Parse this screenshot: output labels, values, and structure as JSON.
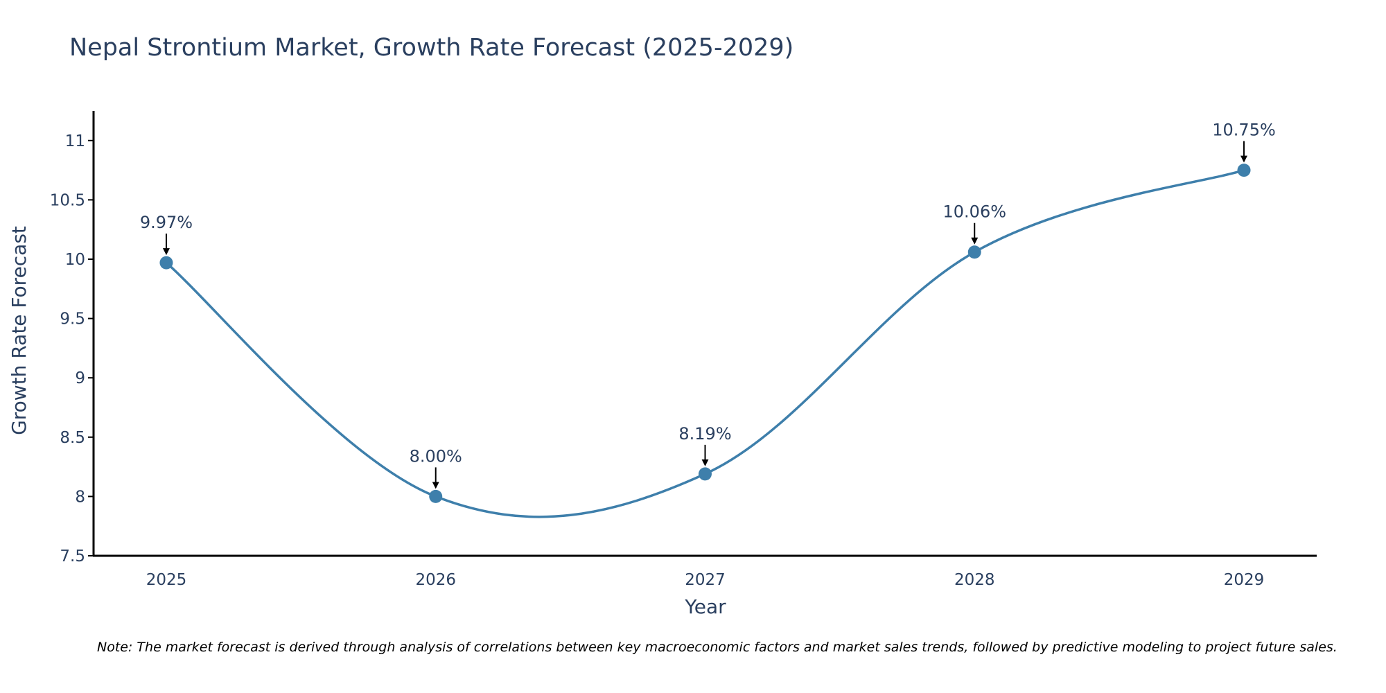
{
  "chart_data": {
    "type": "line",
    "title": "Nepal Strontium Market, Growth Rate Forecast (2025-2029)",
    "xlabel": "Year",
    "ylabel": "Growth Rate Forecast",
    "categories": [
      "2025",
      "2026",
      "2027",
      "2028",
      "2029"
    ],
    "x": [
      2025,
      2026,
      2027,
      2028,
      2029
    ],
    "values": [
      9.97,
      8.0,
      8.19,
      10.06,
      10.75
    ],
    "data_labels": [
      "9.97%",
      "8.00%",
      "8.19%",
      "10.06%",
      "10.75%"
    ],
    "xlim": [
      2024.73,
      2029.27
    ],
    "ylim": [
      7.5,
      11.25
    ],
    "yticks": [
      7.5,
      8,
      8.5,
      9,
      9.5,
      10,
      10.5,
      11
    ],
    "ytick_labels": [
      "7.5",
      "8",
      "8.5",
      "9",
      "9.5",
      "10",
      "10.5",
      "11"
    ],
    "line_shape": "spline",
    "grid": false,
    "colors": {
      "line": "#3e7fab",
      "marker": "#3e7fab",
      "axis": "#000000",
      "text": "#2a3f5f",
      "arrow": "#000000"
    },
    "note": "Note: The market forecast is derived through analysis of correlations between key macroeconomic factors and market sales trends, followed by predictive modeling to project future sales."
  }
}
